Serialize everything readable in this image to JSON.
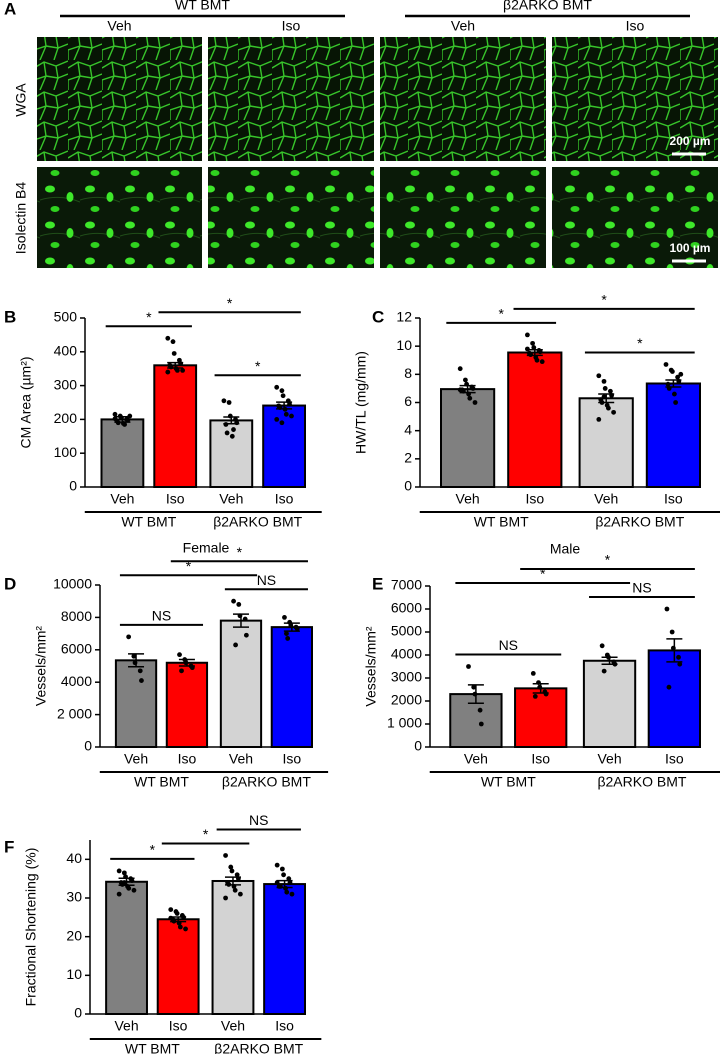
{
  "panel_a": {
    "label": "A",
    "groups": [
      "WT BMT",
      "β2ARKO BMT"
    ],
    "columns": [
      "Veh",
      "Iso",
      "Veh",
      "Iso"
    ],
    "rows": [
      "WGA",
      "Isolectin B4"
    ],
    "scale_bars": [
      "200 µm",
      "100 µm"
    ]
  },
  "chart_data": [
    {
      "type": "bar",
      "panel": "B",
      "ylabel": "CM Area (µm²)",
      "categories": [
        "Veh",
        "Iso",
        "Veh",
        "Iso"
      ],
      "groups": [
        "WT BMT",
        "β2ARKO BMT"
      ],
      "values": [
        200,
        360,
        197,
        241
      ],
      "errors": [
        8,
        8,
        10,
        10
      ],
      "points": [
        [
          215,
          210,
          205,
          200,
          198,
          195,
          190,
          188,
          185,
          210,
          202
        ],
        [
          440,
          430,
          395,
          375,
          365,
          360,
          355,
          350,
          345,
          345,
          340
        ],
        [
          255,
          250,
          210,
          200,
          190,
          185,
          160,
          150,
          170
        ],
        [
          295,
          285,
          270,
          255,
          245,
          240,
          235,
          230,
          215,
          210,
          200,
          190
        ]
      ],
      "colors": [
        "#808080",
        "#ff0000",
        "#d3d3d3",
        "#0000ff"
      ],
      "ylim": [
        0,
        500
      ],
      "yticks": [
        0,
        100,
        200,
        300,
        400,
        500
      ],
      "significance": [
        {
          "bars": [
            0,
            1
          ],
          "label": "*"
        },
        {
          "bars": [
            2,
            3
          ],
          "label": "*"
        },
        {
          "bars": [
            1,
            3
          ],
          "label": "*"
        }
      ]
    },
    {
      "type": "bar",
      "panel": "C",
      "ylabel": "HW/TL (mg/mm)",
      "categories": [
        "Veh",
        "Iso",
        "Veh",
        "Iso"
      ],
      "groups": [
        "WT BMT",
        "β2ARKO BMT"
      ],
      "values": [
        6.95,
        9.55,
        6.3,
        7.35
      ],
      "errors": [
        0.25,
        0.2,
        0.3,
        0.25
      ],
      "points": [
        [
          8.4,
          7.6,
          7.3,
          7.1,
          7.0,
          6.9,
          6.8,
          6.6,
          6.3,
          6.0,
          6.9
        ],
        [
          10.8,
          10.2,
          9.9,
          9.7,
          9.6,
          9.5,
          9.4,
          9.2,
          9.0,
          8.9,
          9.8
        ],
        [
          7.9,
          7.5,
          7.0,
          6.8,
          6.5,
          6.2,
          6.0,
          5.8,
          5.6,
          5.3,
          4.8,
          6.4
        ],
        [
          8.7,
          8.3,
          8.2,
          7.8,
          7.5,
          7.3,
          7.0,
          6.6,
          6.0,
          8.0
        ]
      ],
      "colors": [
        "#808080",
        "#ff0000",
        "#d3d3d3",
        "#0000ff"
      ],
      "ylim": [
        0,
        12
      ],
      "yticks": [
        0,
        2,
        4,
        6,
        8,
        10,
        12
      ],
      "significance": [
        {
          "bars": [
            0,
            1
          ],
          "label": "*"
        },
        {
          "bars": [
            2,
            3
          ],
          "label": "*"
        },
        {
          "bars": [
            1,
            3
          ],
          "label": "*"
        }
      ]
    },
    {
      "type": "bar",
      "panel": "D",
      "title": "Female",
      "ylabel": "Vessels/mm²",
      "categories": [
        "Veh",
        "Iso",
        "Veh",
        "Iso"
      ],
      "groups": [
        "WT BMT",
        "β2ARKO BMT"
      ],
      "values": [
        5350,
        5200,
        7800,
        7400
      ],
      "errors": [
        400,
        200,
        400,
        250
      ],
      "points": [
        [
          6800,
          5600,
          5200,
          4700,
          4100
        ],
        [
          5700,
          5400,
          5200,
          5000,
          4900,
          4700
        ],
        [
          9000,
          8800,
          8100,
          7900,
          6900,
          6300
        ],
        [
          8000,
          7700,
          7500,
          7400,
          7300,
          7000,
          6700
        ]
      ],
      "colors": [
        "#808080",
        "#ff0000",
        "#d3d3d3",
        "#0000ff"
      ],
      "ylim": [
        0,
        10000
      ],
      "yticks": [
        0,
        {
          "value": 2000,
          "label": "2 000"
        },
        4000,
        6000,
        8000,
        10000
      ],
      "significance": [
        {
          "bars": [
            0,
            1
          ],
          "label": "NS"
        },
        {
          "bars": [
            2,
            3
          ],
          "label": "NS"
        },
        {
          "bars": [
            0,
            2
          ],
          "label": "*"
        },
        {
          "bars": [
            1,
            3
          ],
          "label": "*"
        }
      ]
    },
    {
      "type": "bar",
      "panel": "E",
      "title": "Male",
      "ylabel": "Vessels/mm²",
      "categories": [
        "Veh",
        "Iso",
        "Veh",
        "Iso"
      ],
      "groups": [
        "WT BMT",
        "β2ARKO BMT"
      ],
      "values": [
        2300,
        2550,
        3750,
        4200
      ],
      "errors": [
        400,
        200,
        150,
        500
      ],
      "points": [
        [
          3500,
          2600,
          2300,
          1600,
          1000
        ],
        [
          3200,
          2800,
          2600,
          2400,
          2300,
          2200
        ],
        [
          4400,
          4000,
          3900,
          3700,
          3600,
          3300
        ],
        [
          6000,
          5000,
          4300,
          3900,
          3600,
          2600
        ]
      ],
      "colors": [
        "#808080",
        "#ff0000",
        "#d3d3d3",
        "#0000ff"
      ],
      "ylim": [
        0,
        7000
      ],
      "yticks": [
        0,
        {
          "value": 1000,
          "label": "1 000"
        },
        2000,
        3000,
        4000,
        5000,
        6000,
        7000
      ],
      "significance": [
        {
          "bars": [
            0,
            1
          ],
          "label": "NS"
        },
        {
          "bars": [
            2,
            3
          ],
          "label": "NS"
        },
        {
          "bars": [
            0,
            2
          ],
          "label": "*"
        },
        {
          "bars": [
            1,
            3
          ],
          "label": "*"
        }
      ]
    },
    {
      "type": "bar",
      "panel": "F",
      "ylabel": "Fractional Shortening (%)",
      "categories": [
        "Veh",
        "Iso",
        "Veh",
        "Iso"
      ],
      "groups": [
        "WT BMT",
        "β2ARKO BMT"
      ],
      "values": [
        34.2,
        24.5,
        34.4,
        33.6
      ],
      "errors": [
        0.9,
        0.6,
        1.0,
        0.9
      ],
      "points": [
        [
          37,
          36.5,
          35.5,
          35,
          34.5,
          34,
          33.5,
          33,
          32.5,
          32,
          31,
          34
        ],
        [
          27,
          26.5,
          26,
          25.5,
          25,
          24.5,
          24,
          23.5,
          22.5,
          22,
          24.8
        ],
        [
          41,
          38,
          37,
          36,
          35,
          34,
          33.5,
          33,
          32,
          31,
          30
        ],
        [
          38.5,
          37.5,
          36,
          35,
          34,
          33,
          33,
          32.5,
          31.5,
          31,
          34
        ]
      ],
      "colors": [
        "#808080",
        "#ff0000",
        "#d3d3d3",
        "#0000ff"
      ],
      "ylim": [
        0,
        45
      ],
      "yticks": [
        0,
        10,
        20,
        30,
        40
      ],
      "significance": [
        {
          "bars": [
            0,
            1
          ],
          "label": "*"
        },
        {
          "bars": [
            1,
            2
          ],
          "label": "*"
        },
        {
          "bars": [
            2,
            3
          ],
          "label": "NS"
        }
      ]
    }
  ]
}
